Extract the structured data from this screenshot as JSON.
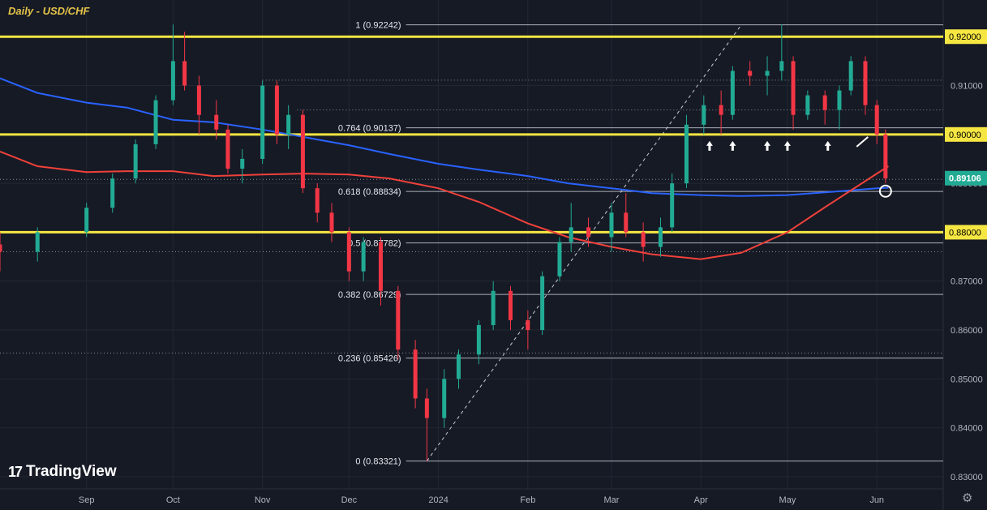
{
  "header": {
    "title": "Daily - USD/CHF"
  },
  "branding": {
    "logo_text": "TradingView",
    "logo_mark": "17"
  },
  "toolbar": {
    "settings_icon": "gear-icon"
  },
  "colors": {
    "background": "#161a25",
    "grid": "#232733",
    "axis_text": "#b2b5be",
    "candle_up": "#22ab94",
    "candle_down": "#f23645",
    "ma_blue": "#2962ff",
    "ma_red": "#f0413a",
    "yellow_level": "#f5e642",
    "fib_line": "#c8ccd6",
    "current_price": "#22ab94"
  },
  "chart_data": {
    "type": "candlestick",
    "title": "Daily - USD/CHF",
    "y_axis": {
      "ticks": [
        "0.83000",
        "0.84000",
        "0.85000",
        "0.86000",
        "0.87000",
        "0.88000",
        "0.89000",
        "0.90000",
        "0.91000",
        "0.92000"
      ],
      "range": [
        0.8275,
        0.9275
      ]
    },
    "x_axis": {
      "labels": [
        {
          "label": "Sep",
          "date": "2023-09-01"
        },
        {
          "label": "Oct",
          "date": "2023-10-01"
        },
        {
          "label": "Nov",
          "date": "2023-11-01"
        },
        {
          "label": "Dec",
          "date": "2023-12-01"
        },
        {
          "label": "2024",
          "date": "2024-01-01"
        },
        {
          "label": "Feb",
          "date": "2024-02-01"
        },
        {
          "label": "Mar",
          "date": "2024-03-01"
        },
        {
          "label": "Apr",
          "date": "2024-04-01"
        },
        {
          "label": "May",
          "date": "2024-05-01"
        },
        {
          "label": "Jun",
          "date": "2024-06-01"
        }
      ],
      "range": [
        "2023-08-02",
        "2024-06-24"
      ]
    },
    "horizontal_levels": [
      {
        "price": 0.92,
        "label": "0.92000"
      },
      {
        "price": 0.9,
        "label": "0.90000"
      },
      {
        "price": 0.88,
        "label": "0.88000"
      }
    ],
    "current_price": {
      "price": 0.89106,
      "label": "0.89106"
    },
    "fibonacci": {
      "start_date": "2024-01-01",
      "levels": [
        {
          "ratio": "1",
          "price": 0.92242,
          "label": "1 (0.92242)"
        },
        {
          "ratio": "0.764",
          "price": 0.90137,
          "label": "0.764 (0.90137)"
        },
        {
          "ratio": "0.618",
          "price": 0.88834,
          "label": "0.618 (0.88834)"
        },
        {
          "ratio": "0.5",
          "price": 0.87782,
          "label": "0.5 (0.87782)"
        },
        {
          "ratio": "0.382",
          "price": 0.86729,
          "label": "0.382 (0.86729)"
        },
        {
          "ratio": "0.236",
          "price": 0.85426,
          "label": "0.236 (0.85426)"
        },
        {
          "ratio": "0",
          "price": 0.83321,
          "label": "0 (0.83321)"
        }
      ],
      "trendline": {
        "from": [
          "2023-12-28",
          0.83321
        ],
        "to": [
          "2024-04-15",
          0.92242
        ]
      }
    },
    "dotted_levels": [
      {
        "price": 0.9111,
        "from": "2023-11-01"
      },
      {
        "price": 0.905,
        "from": "2023-11-13"
      },
      {
        "price": 0.876,
        "from": "2023-08-02"
      },
      {
        "price": 0.8553,
        "from": "2023-08-02"
      },
      {
        "price": 0.8908,
        "from": "2023-08-02"
      }
    ],
    "series": [
      {
        "name": "",
        "kind": "ma",
        "color": "#2962ff",
        "points": [
          [
            "2023-08-02",
            0.9115
          ],
          [
            "2023-08-15",
            0.9085
          ],
          [
            "2023-09-01",
            0.9065
          ],
          [
            "2023-09-15",
            0.9055
          ],
          [
            "2023-10-01",
            0.903
          ],
          [
            "2023-10-15",
            0.9025
          ],
          [
            "2023-11-01",
            0.901
          ],
          [
            "2023-11-15",
            0.8995
          ],
          [
            "2023-12-01",
            0.8978
          ],
          [
            "2023-12-15",
            0.896
          ],
          [
            "2024-01-01",
            0.894
          ],
          [
            "2024-01-15",
            0.8928
          ],
          [
            "2024-02-01",
            0.8915
          ],
          [
            "2024-02-15",
            0.89
          ],
          [
            "2024-03-01",
            0.889
          ],
          [
            "2024-03-15",
            0.888
          ],
          [
            "2024-04-01",
            0.8876
          ],
          [
            "2024-04-15",
            0.8874
          ],
          [
            "2024-05-01",
            0.8876
          ],
          [
            "2024-05-15",
            0.8882
          ],
          [
            "2024-06-01",
            0.889
          ],
          [
            "2024-06-05",
            0.8891
          ]
        ]
      },
      {
        "name": "",
        "kind": "ma",
        "color": "#f0413a",
        "points": [
          [
            "2023-08-02",
            0.8965
          ],
          [
            "2023-08-15",
            0.8935
          ],
          [
            "2023-09-01",
            0.8923
          ],
          [
            "2023-09-15",
            0.8925
          ],
          [
            "2023-10-01",
            0.8925
          ],
          [
            "2023-10-15",
            0.8915
          ],
          [
            "2023-11-01",
            0.8918
          ],
          [
            "2023-11-15",
            0.892
          ],
          [
            "2023-12-01",
            0.8918
          ],
          [
            "2023-12-15",
            0.891
          ],
          [
            "2024-01-01",
            0.889
          ],
          [
            "2024-01-15",
            0.8862
          ],
          [
            "2024-02-01",
            0.8818
          ],
          [
            "2024-02-15",
            0.879
          ],
          [
            "2024-03-01",
            0.877
          ],
          [
            "2024-03-15",
            0.8755
          ],
          [
            "2024-04-01",
            0.8745
          ],
          [
            "2024-04-15",
            0.8758
          ],
          [
            "2024-05-01",
            0.88
          ],
          [
            "2024-05-15",
            0.8855
          ],
          [
            "2024-06-01",
            0.892
          ],
          [
            "2024-06-05",
            0.8935
          ]
        ]
      }
    ],
    "candles": [
      [
        "2023-08-02",
        0.8775,
        0.88,
        0.872,
        0.876
      ],
      [
        "2023-08-15",
        0.876,
        0.881,
        0.874,
        0.88
      ],
      [
        "2023-09-01",
        0.88,
        0.886,
        0.879,
        0.885
      ],
      [
        "2023-09-10",
        0.885,
        0.892,
        0.884,
        0.891
      ],
      [
        "2023-09-18",
        0.891,
        0.899,
        0.89,
        0.898
      ],
      [
        "2023-09-25",
        0.898,
        0.908,
        0.897,
        0.907
      ],
      [
        "2023-10-01",
        0.907,
        0.9225,
        0.906,
        0.915
      ],
      [
        "2023-10-05",
        0.915,
        0.921,
        0.909,
        0.91
      ],
      [
        "2023-10-10",
        0.91,
        0.912,
        0.9,
        0.904
      ],
      [
        "2023-10-16",
        0.904,
        0.907,
        0.899,
        0.901
      ],
      [
        "2023-10-20",
        0.901,
        0.902,
        0.892,
        0.893
      ],
      [
        "2023-10-25",
        0.893,
        0.897,
        0.89,
        0.895
      ],
      [
        "2023-11-01",
        0.895,
        0.911,
        0.894,
        0.91
      ],
      [
        "2023-11-06",
        0.91,
        0.911,
        0.898,
        0.9
      ],
      [
        "2023-11-10",
        0.9,
        0.906,
        0.897,
        0.904
      ],
      [
        "2023-11-15",
        0.904,
        0.905,
        0.888,
        0.889
      ],
      [
        "2023-11-20",
        0.889,
        0.89,
        0.882,
        0.884
      ],
      [
        "2023-11-25",
        0.884,
        0.886,
        0.878,
        0.88
      ],
      [
        "2023-12-01",
        0.88,
        0.881,
        0.87,
        0.872
      ],
      [
        "2023-12-06",
        0.872,
        0.879,
        0.87,
        0.878
      ],
      [
        "2023-12-12",
        0.878,
        0.879,
        0.865,
        0.868
      ],
      [
        "2023-12-18",
        0.868,
        0.869,
        0.854,
        0.856
      ],
      [
        "2023-12-24",
        0.856,
        0.858,
        0.844,
        0.846
      ],
      [
        "2023-12-28",
        0.846,
        0.848,
        0.8332,
        0.842
      ],
      [
        "2024-01-03",
        0.842,
        0.852,
        0.84,
        0.85
      ],
      [
        "2024-01-08",
        0.85,
        0.856,
        0.848,
        0.855
      ],
      [
        "2024-01-15",
        0.855,
        0.862,
        0.853,
        0.861
      ],
      [
        "2024-01-20",
        0.861,
        0.87,
        0.86,
        0.868
      ],
      [
        "2024-01-26",
        0.868,
        0.869,
        0.86,
        0.862
      ],
      [
        "2024-02-01",
        0.862,
        0.864,
        0.856,
        0.86
      ],
      [
        "2024-02-06",
        0.86,
        0.872,
        0.859,
        0.871
      ],
      [
        "2024-02-12",
        0.871,
        0.879,
        0.87,
        0.878
      ],
      [
        "2024-02-16",
        0.878,
        0.886,
        0.876,
        0.881
      ],
      [
        "2024-02-22",
        0.881,
        0.883,
        0.877,
        0.879
      ],
      [
        "2024-03-01",
        0.879,
        0.886,
        0.876,
        0.884
      ],
      [
        "2024-03-06",
        0.884,
        0.888,
        0.879,
        0.88
      ],
      [
        "2024-03-12",
        0.88,
        0.882,
        0.874,
        0.877
      ],
      [
        "2024-03-18",
        0.877,
        0.883,
        0.875,
        0.881
      ],
      [
        "2024-03-22",
        0.881,
        0.892,
        0.88,
        0.89
      ],
      [
        "2024-03-27",
        0.89,
        0.904,
        0.889,
        0.902
      ],
      [
        "2024-04-02",
        0.902,
        0.908,
        0.9,
        0.906
      ],
      [
        "2024-04-08",
        0.906,
        0.909,
        0.9,
        0.904
      ],
      [
        "2024-04-12",
        0.904,
        0.914,
        0.903,
        0.913
      ],
      [
        "2024-04-18",
        0.913,
        0.915,
        0.91,
        0.912
      ],
      [
        "2024-04-24",
        0.912,
        0.916,
        0.908,
        0.913
      ],
      [
        "2024-04-29",
        0.913,
        0.9225,
        0.911,
        0.915
      ],
      [
        "2024-05-03",
        0.915,
        0.916,
        0.901,
        0.904
      ],
      [
        "2024-05-08",
        0.904,
        0.909,
        0.903,
        0.908
      ],
      [
        "2024-05-14",
        0.908,
        0.909,
        0.902,
        0.905
      ],
      [
        "2024-05-19",
        0.905,
        0.91,
        0.901,
        0.909
      ],
      [
        "2024-05-23",
        0.909,
        0.916,
        0.908,
        0.915
      ],
      [
        "2024-05-28",
        0.915,
        0.916,
        0.904,
        0.906
      ],
      [
        "2024-06-01",
        0.906,
        0.907,
        0.898,
        0.9
      ],
      [
        "2024-06-04",
        0.9,
        0.901,
        0.89,
        0.891
      ]
    ]
  }
}
